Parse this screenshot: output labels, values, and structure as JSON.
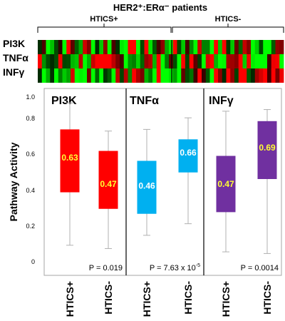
{
  "chart_data": {
    "type": "box",
    "title": "HER2⁺:ERα⁻ patients",
    "group_labels": [
      "HTICS+",
      "HTICS-"
    ],
    "heatmap_rows": [
      "PI3K",
      "TNFα",
      "INFγ"
    ],
    "ylabel": "Pathway Activity",
    "ylim": [
      0,
      1
    ],
    "yticks": [
      "0",
      "0.2",
      "0.4",
      "0.6",
      "0.8",
      "1.0"
    ],
    "categories": [
      "HTICS+",
      "HTICS-",
      "HTICS+",
      "HTICS-",
      "HTICS+",
      "HTICS-"
    ],
    "panels": [
      {
        "name": "PI3K",
        "p_value": "P = 0.019",
        "color": "#ff0000",
        "label_color": "#ffff33",
        "boxes": [
          {
            "group": "HTICS+",
            "min": 0.1,
            "q1": 0.42,
            "median": 0.63,
            "q3": 0.8,
            "max": 0.96,
            "label": "0.63"
          },
          {
            "group": "HTICS-",
            "min": 0.08,
            "q1": 0.32,
            "median": 0.47,
            "q3": 0.67,
            "max": 0.79,
            "label": "0.47"
          }
        ]
      },
      {
        "name": "TNFα",
        "p_value": "P = 7.63 x 10",
        "p_exponent": "-5",
        "color": "#00b0f0",
        "label_color": "#ffffff",
        "boxes": [
          {
            "group": "HTICS+",
            "min": 0.16,
            "q1": 0.29,
            "median": 0.46,
            "q3": 0.61,
            "max": 0.8,
            "label": "0.46"
          },
          {
            "group": "HTICS-",
            "min": 0.23,
            "q1": 0.54,
            "median": 0.66,
            "q3": 0.74,
            "max": 0.87,
            "label": "0.66"
          }
        ]
      },
      {
        "name": "INFγ",
        "p_value": "P = 0.0014",
        "color": "#7030a0",
        "label_color": "#ffff33",
        "boxes": [
          {
            "group": "HTICS+",
            "min": 0.06,
            "q1": 0.3,
            "median": 0.47,
            "q3": 0.64,
            "max": 0.91,
            "label": "0.47"
          },
          {
            "group": "HTICS-",
            "min": 0.05,
            "q1": 0.5,
            "median": 0.69,
            "q3": 0.85,
            "max": 0.92,
            "label": "0.69"
          }
        ]
      }
    ]
  }
}
